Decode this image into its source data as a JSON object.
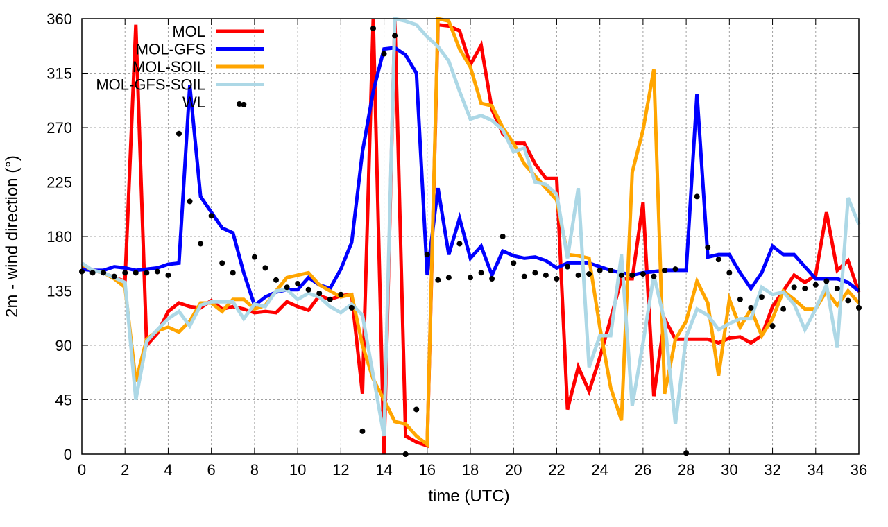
{
  "chart_data": {
    "type": "line",
    "title": "",
    "xlabel": "time (UTC)",
    "ylabel": "2m - wind direction (°)",
    "xlim": [
      0,
      36
    ],
    "ylim": [
      0,
      360
    ],
    "xticks": [
      0,
      2,
      4,
      6,
      8,
      10,
      12,
      14,
      16,
      18,
      20,
      22,
      24,
      26,
      28,
      30,
      32,
      34,
      36
    ],
    "yticks": [
      0,
      45,
      90,
      135,
      180,
      225,
      270,
      315,
      360
    ],
    "grid": true,
    "legend_position": "top-left",
    "x_step": 0.5,
    "series": [
      {
        "name": "MOL",
        "color": "#ff0000",
        "kind": "line",
        "values": [
          155,
          152,
          150,
          146,
          143,
          355,
          90,
          100,
          118,
          125,
          122,
          121,
          127,
          120,
          122,
          120,
          117,
          118,
          117,
          126,
          122,
          119,
          131,
          128,
          131,
          132,
          50,
          360,
          0,
          360,
          15,
          10,
          7,
          355,
          354,
          350,
          322,
          338,
          285,
          265,
          257,
          257,
          240,
          228,
          228,
          37,
          72,
          52,
          80,
          112,
          145,
          145,
          208,
          48,
          112,
          95,
          95,
          95,
          95,
          92,
          96,
          97,
          92,
          98,
          122,
          135,
          148,
          142,
          148,
          200,
          152,
          160,
          134
        ]
      },
      {
        "name": "MOL-GFS",
        "color": "#0000ff",
        "kind": "line",
        "values": [
          153,
          152,
          152,
          155,
          154,
          152,
          153,
          154,
          157,
          158,
          305,
          213,
          200,
          187,
          183,
          150,
          123,
          130,
          134,
          136,
          136,
          146,
          140,
          137,
          153,
          175,
          250,
          300,
          335,
          336,
          330,
          315,
          148,
          220,
          165,
          195,
          162,
          172,
          148,
          168,
          164,
          162,
          163,
          160,
          154,
          158,
          158,
          158,
          155,
          152,
          150,
          148,
          150,
          151,
          152,
          152,
          152,
          298,
          163,
          165,
          165,
          150,
          137,
          150,
          172,
          165,
          165,
          155,
          145,
          145,
          145,
          142,
          135
        ]
      },
      {
        "name": "MOL-SOIL",
        "color": "#ffa500",
        "kind": "line",
        "values": [
          157,
          152,
          150,
          145,
          138,
          60,
          95,
          102,
          105,
          101,
          110,
          125,
          125,
          118,
          128,
          128,
          120,
          123,
          135,
          146,
          148,
          150,
          140,
          135,
          130,
          132,
          90,
          62,
          45,
          27,
          25,
          15,
          8,
          360,
          358,
          335,
          320,
          290,
          288,
          270,
          257,
          240,
          230,
          220,
          210,
          165,
          164,
          162,
          105,
          55,
          28,
          233,
          268,
          318,
          50,
          95,
          110,
          143,
          125,
          65,
          128,
          105,
          120,
          98,
          112,
          135,
          128,
          120,
          120,
          135,
          123,
          135,
          125
        ]
      },
      {
        "name": "MOL-GFS-SOIL",
        "color": "#add8e6",
        "kind": "line",
        "values": [
          158,
          152,
          150,
          146,
          142,
          45,
          93,
          103,
          112,
          118,
          106,
          123,
          126,
          126,
          126,
          112,
          124,
          122,
          135,
          136,
          128,
          133,
          130,
          122,
          117,
          124,
          115,
          65,
          15,
          360,
          358,
          355,
          345,
          337,
          325,
          300,
          277,
          280,
          276,
          268,
          250,
          253,
          225,
          223,
          215,
          162,
          220,
          72,
          98,
          98,
          165,
          40,
          92,
          148,
          110,
          25,
          97,
          120,
          115,
          103,
          108,
          112,
          112,
          138,
          132,
          134,
          124,
          103,
          120,
          140,
          88,
          212,
          190
        ]
      },
      {
        "name": "WL",
        "color": "#000000",
        "kind": "points",
        "values": [
          151,
          150,
          150,
          147,
          150,
          150,
          150,
          151,
          148,
          265,
          209,
          174,
          197,
          158,
          150,
          289,
          163,
          154,
          144,
          138,
          141,
          136,
          133,
          128,
          132,
          121,
          19,
          352,
          331,
          346,
          0,
          37,
          165,
          144,
          146,
          174,
          146,
          150,
          145,
          180,
          158,
          147,
          150,
          148,
          145,
          155,
          148,
          149,
          152,
          152,
          148,
          148,
          149,
          147,
          152,
          153,
          1,
          213,
          171,
          161,
          150,
          128,
          121,
          130,
          106,
          120,
          138,
          137,
          140,
          143,
          137,
          127,
          121
        ]
      }
    ]
  }
}
